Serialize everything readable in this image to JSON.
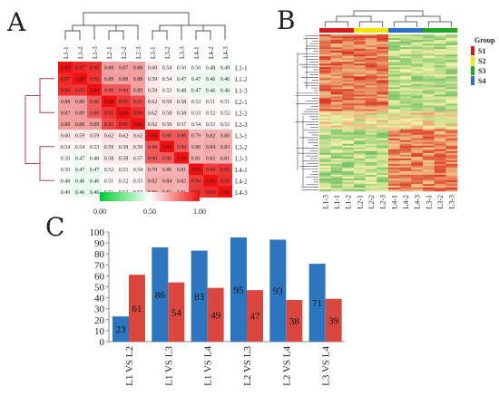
{
  "panel_a": {
    "letter": "A",
    "labels": [
      "L1-1",
      "L1-2",
      "L1-3",
      "L2-1",
      "L2-2",
      "L2-3",
      "L3-1",
      "L3-2",
      "L3-3",
      "L4-1",
      "L4-2",
      "L4-3"
    ],
    "matrix": [
      [
        1.0,
        0.97,
        0.96,
        0.88,
        0.87,
        0.88,
        0.6,
        0.54,
        0.5,
        0.5,
        0.48,
        0.49
      ],
      [
        0.97,
        1.0,
        0.95,
        0.89,
        0.89,
        0.88,
        0.59,
        0.54,
        0.47,
        0.47,
        0.46,
        0.46
      ],
      [
        0.96,
        0.95,
        1.0,
        0.9,
        0.9,
        0.89,
        0.59,
        0.53,
        0.48,
        0.47,
        0.46,
        0.46
      ],
      [
        0.88,
        0.89,
        0.9,
        1.0,
        0.95,
        0.92,
        0.62,
        0.59,
        0.58,
        0.52,
        0.51,
        0.51
      ],
      [
        0.87,
        0.89,
        0.9,
        0.95,
        1.0,
        0.96,
        0.62,
        0.58,
        0.58,
        0.53,
        0.52,
        0.52
      ],
      [
        0.88,
        0.88,
        0.89,
        0.92,
        0.96,
        1.0,
        0.62,
        0.59,
        0.57,
        0.54,
        0.53,
        0.53
      ],
      [
        0.6,
        0.59,
        0.59,
        0.62,
        0.62,
        0.62,
        1.0,
        0.9,
        0.9,
        0.79,
        0.82,
        0.8
      ],
      [
        0.54,
        0.54,
        0.53,
        0.59,
        0.58,
        0.59,
        0.9,
        1.0,
        0.9,
        0.8,
        0.84,
        0.83
      ],
      [
        0.5,
        0.47,
        0.48,
        0.58,
        0.58,
        0.57,
        0.9,
        0.9,
        1.0,
        0.81,
        0.82,
        0.81
      ],
      [
        0.5,
        0.47,
        0.47,
        0.52,
        0.53,
        0.54,
        0.79,
        0.8,
        0.81,
        1.0,
        0.94,
        0.95
      ],
      [
        0.48,
        0.46,
        0.46,
        0.51,
        0.52,
        0.53,
        0.82,
        0.84,
        0.82,
        0.94,
        1.0,
        0.96
      ],
      [
        0.49,
        0.46,
        0.46,
        0.51,
        0.52,
        0.53,
        0.8,
        0.83,
        0.81,
        0.95,
        0.96,
        1.0
      ]
    ],
    "colorbar": {
      "ticks": [
        "0.00",
        "0.50",
        "1.00"
      ],
      "low_color": "#00cc33",
      "mid_color": "#ffffff",
      "high_color": "#ee1111"
    }
  },
  "panel_b": {
    "letter": "B",
    "columns": [
      "L1-3",
      "L1-1",
      "L1-2",
      "L2-1",
      "L2-2",
      "L2-3",
      "L4-1",
      "L4-2",
      "L4-3",
      "L3-1",
      "L3-2",
      "L3-3"
    ],
    "column_groups": [
      "S1",
      "S1",
      "S1",
      "S2",
      "S2",
      "S2",
      "S4",
      "S4",
      "S4",
      "S3",
      "S3",
      "S3"
    ],
    "group_legend": {
      "title": "Group",
      "items": [
        {
          "label": "S1",
          "color": "#d7191c"
        },
        {
          "label": "S2",
          "color": "#f5e400"
        },
        {
          "label": "S3",
          "color": "#1fa81f"
        },
        {
          "label": "S4",
          "color": "#2b6fc9"
        }
      ]
    },
    "colors": {
      "low": "#1fa040",
      "mid": "#f7f3a8",
      "high": "#d9281a"
    }
  },
  "panel_c": {
    "letter": "C",
    "chart_data": {
      "type": "bar",
      "categories": [
        "L1 VS L2",
        "L1 VS L3",
        "L1 VS L4",
        "L2 VS L3",
        "L2 VS L4",
        "L3 VS L4"
      ],
      "series": [
        {
          "values": [
            23,
            86,
            83,
            95,
            93,
            71
          ],
          "color": "#2e75c0"
        },
        {
          "values": [
            61,
            54,
            49,
            47,
            38,
            39
          ],
          "color": "#d9473f"
        }
      ],
      "ylim": [
        0,
        100
      ],
      "yticks": [
        0,
        10,
        20,
        30,
        40,
        50,
        60,
        70,
        80,
        90,
        100
      ],
      "grid": false
    }
  }
}
